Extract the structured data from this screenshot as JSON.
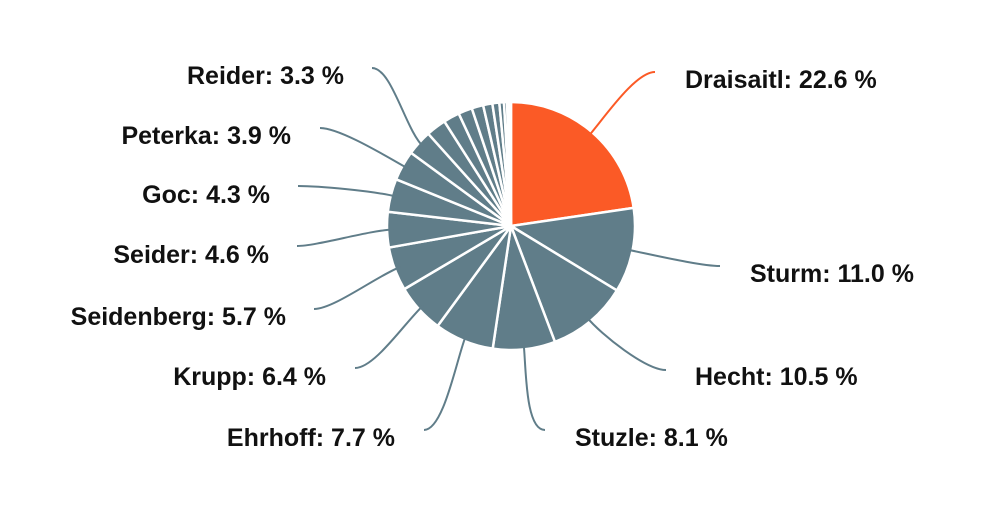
{
  "chart_data": {
    "type": "pie",
    "title": "",
    "slices": [
      {
        "label": "Draisaitl: 22.6 %",
        "name": "Draisaitl",
        "value": 22.6,
        "color": "#fb5a26"
      },
      {
        "label": "Sturm: 11.0 %",
        "name": "Sturm",
        "value": 11.0,
        "color": "#607d89"
      },
      {
        "label": "Hecht: 10.5 %",
        "name": "Hecht",
        "value": 10.5,
        "color": "#607d89"
      },
      {
        "label": "Stuzle: 8.1 %",
        "name": "Stuzle",
        "value": 8.1,
        "color": "#607d89"
      },
      {
        "label": "Ehrhoff: 7.7 %",
        "name": "Ehrhoff",
        "value": 7.7,
        "color": "#607d89"
      },
      {
        "label": "Krupp: 6.4 %",
        "name": "Krupp",
        "value": 6.4,
        "color": "#607d89"
      },
      {
        "label": "Seidenberg: 5.7 %",
        "name": "Seidenberg",
        "value": 5.7,
        "color": "#607d89"
      },
      {
        "label": "Seider: 4.6 %",
        "name": "Seider",
        "value": 4.6,
        "color": "#607d89"
      },
      {
        "label": "Goc: 4.3 %",
        "name": "Goc",
        "value": 4.3,
        "color": "#607d89"
      },
      {
        "label": "Peterka: 3.9 %",
        "name": "Peterka",
        "value": 3.9,
        "color": "#607d89"
      },
      {
        "label": "Reider: 3.3 %",
        "name": "Reider",
        "value": 3.3,
        "color": "#607d89"
      },
      {
        "label": "",
        "value": 2.6,
        "color": "#607d89"
      },
      {
        "label": "",
        "value": 2.1,
        "color": "#607d89"
      },
      {
        "label": "",
        "value": 1.8,
        "color": "#607d89"
      },
      {
        "label": "",
        "value": 1.5,
        "color": "#607d89"
      },
      {
        "label": "",
        "value": 1.2,
        "color": "#607d89"
      },
      {
        "label": "",
        "value": 0.9,
        "color": "#607d89"
      },
      {
        "label": "",
        "value": 0.6,
        "color": "#607d89"
      },
      {
        "label": "",
        "value": 0.4,
        "color": "#607d89"
      },
      {
        "label": "",
        "value": 0.3,
        "color": "#607d89"
      },
      {
        "label": "",
        "value": 0.2,
        "color": "#607d89"
      }
    ]
  }
}
